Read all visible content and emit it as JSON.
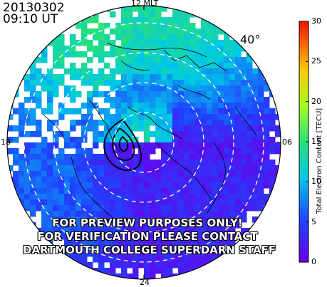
{
  "header": {
    "date": "20130302",
    "time": "09:10 UT"
  },
  "latitude_label": "40°",
  "watermark": {
    "line1": "FOR PREVIEW PURPOSES ONLY!",
    "line2": "FOR VERIFICATION PLEASE CONTACT",
    "line3": "DARTMOUTH COLLEGE SUPERDARN STAFF"
  },
  "chart_data": {
    "type": "heatmap",
    "projection": "polar",
    "mlt_labels": {
      "top": "12 MLT",
      "left": "18",
      "right": "06",
      "bottom": "24"
    },
    "latitude_circle_labels": [
      "40°"
    ],
    "colorbar": {
      "title": "Total Electron Content [TECU]",
      "min": 0,
      "max": 30,
      "ticks": [
        {
          "value": 0,
          "label": "0"
        },
        {
          "value": 5,
          "label": "5"
        },
        {
          "value": 10,
          "label": "10"
        },
        {
          "value": 15,
          "label": "15"
        },
        {
          "value": 20,
          "label": "20"
        },
        {
          "value": 25,
          "label": "25"
        },
        {
          "value": 30,
          "label": "30"
        }
      ]
    },
    "tec_regions": [
      {
        "region": "dayside (12 MLT)",
        "tec": 18
      },
      {
        "region": "dusk (18 MLT)",
        "tec": 13
      },
      {
        "region": "dawn (06 MLT)",
        "tec": 5
      },
      {
        "region": "midnight (24 MLT)",
        "tec": 4
      },
      {
        "region": "polar cap",
        "tec": 2
      }
    ],
    "colors": {
      "low": "#6a00e8",
      "mid_low": "#2040ff",
      "mid": "#00c8e8",
      "mid_high": "#30e060",
      "high": "#e0ff20",
      "max": "#ff2000"
    }
  }
}
